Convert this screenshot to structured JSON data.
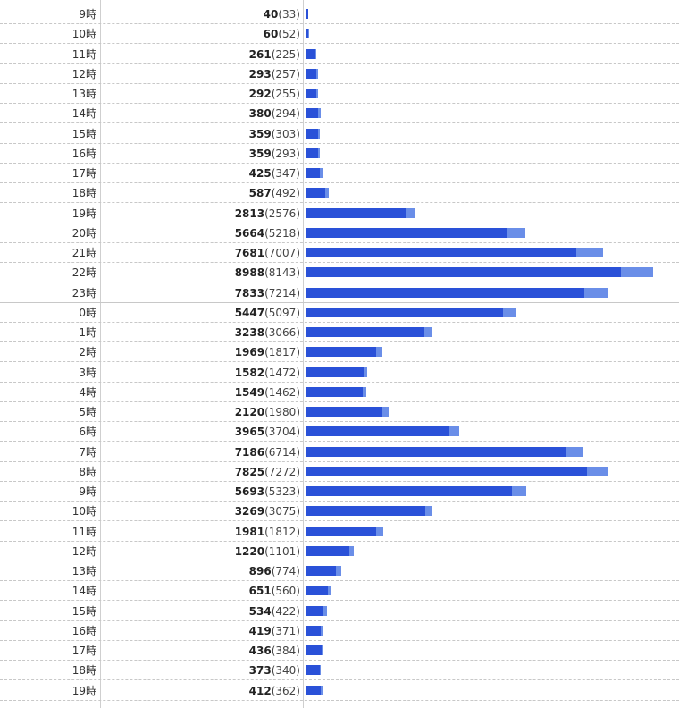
{
  "chart_data": {
    "type": "bar",
    "orientation": "horizontal",
    "categories": [
      "9時",
      "10時",
      "11時",
      "12時",
      "13時",
      "14時",
      "15時",
      "16時",
      "17時",
      "18時",
      "19時",
      "20時",
      "21時",
      "22時",
      "23時",
      "0時",
      "1時",
      "2時",
      "3時",
      "4時",
      "5時",
      "6時",
      "7時",
      "8時",
      "9時",
      "10時",
      "11時",
      "12時",
      "13時",
      "14時",
      "15時",
      "16時",
      "17時",
      "18時",
      "19時"
    ],
    "series": [
      {
        "values": [
          40,
          60,
          261,
          293,
          292,
          380,
          359,
          359,
          425,
          587,
          2813,
          5664,
          7681,
          8988,
          7833,
          5447,
          3238,
          1969,
          1582,
          1549,
          2120,
          3965,
          7186,
          7825,
          5693,
          3269,
          1981,
          1220,
          896,
          651,
          534,
          419,
          436,
          373,
          412
        ]
      },
      {
        "values": [
          33,
          52,
          225,
          257,
          255,
          294,
          303,
          293,
          347,
          492,
          2576,
          5218,
          7007,
          8143,
          7214,
          5097,
          3066,
          1817,
          1472,
          1462,
          1980,
          3704,
          6714,
          7272,
          5323,
          3075,
          1812,
          1101,
          774,
          560,
          422,
          371,
          384,
          340,
          362
        ]
      }
    ],
    "day_boundary_after_index": 14,
    "xlim": [
      0,
      8988
    ],
    "colors": {
      "primary": "#2a51d8",
      "secondary": "#6a8ee8",
      "grid": "#c8c8c8"
    }
  }
}
